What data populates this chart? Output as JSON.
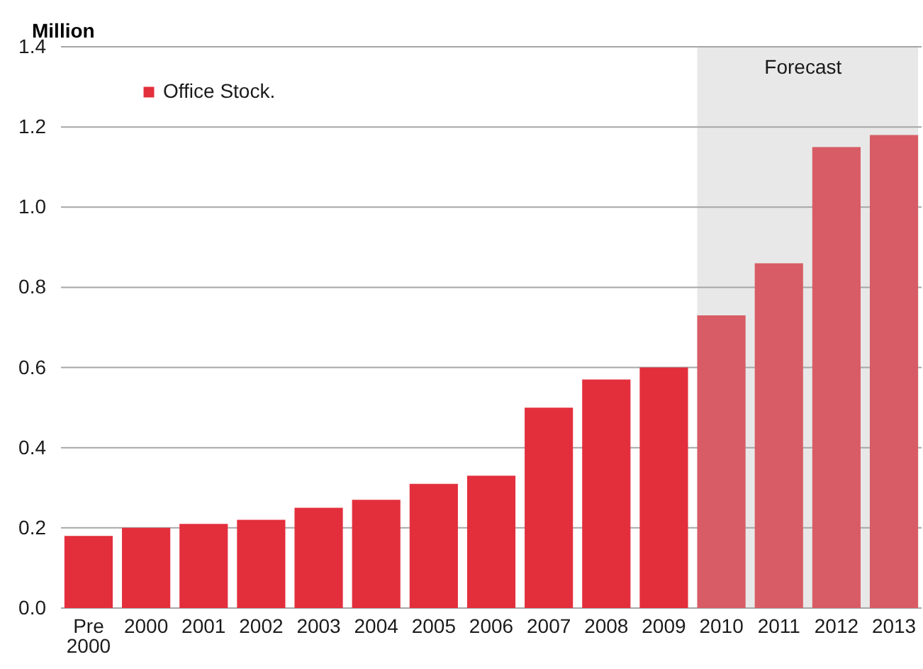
{
  "chart_data": {
    "type": "bar",
    "ylabel": "Million",
    "categories": [
      "Pre 2000",
      "2000",
      "2001",
      "2002",
      "2003",
      "2004",
      "2005",
      "2006",
      "2007",
      "2008",
      "2009",
      "2010",
      "2011",
      "2012",
      "2013"
    ],
    "series": [
      {
        "name": "Office Stock.",
        "color": "#e32f3c",
        "colors": [
          "#e32f3c",
          "#e32f3c",
          "#e32f3c",
          "#e32f3c",
          "#e32f3c",
          "#e32f3c",
          "#e32f3c",
          "#e32f3c",
          "#e32f3c",
          "#e32f3c",
          "#e32f3c",
          "#d85c65",
          "#d85c65",
          "#d85c65",
          "#d85c65"
        ],
        "values": [
          0.18,
          0.2,
          0.21,
          0.22,
          0.25,
          0.27,
          0.31,
          0.33,
          0.5,
          0.57,
          0.6,
          0.73,
          0.86,
          1.15,
          1.18
        ]
      }
    ],
    "ylim": [
      0,
      1.4
    ],
    "yticks": [
      {
        "value": 0,
        "label": "0.0"
      },
      0.2,
      0.4,
      0.6,
      0.8,
      {
        "value": 1,
        "label": "1.0"
      },
      1.2,
      1.4
    ],
    "grid": "y",
    "legend": "top left",
    "bands": [
      {
        "axis": "x",
        "from": "2010",
        "to": "2013",
        "label": "Forecast",
        "color": "#e8e8e8"
      }
    ]
  }
}
